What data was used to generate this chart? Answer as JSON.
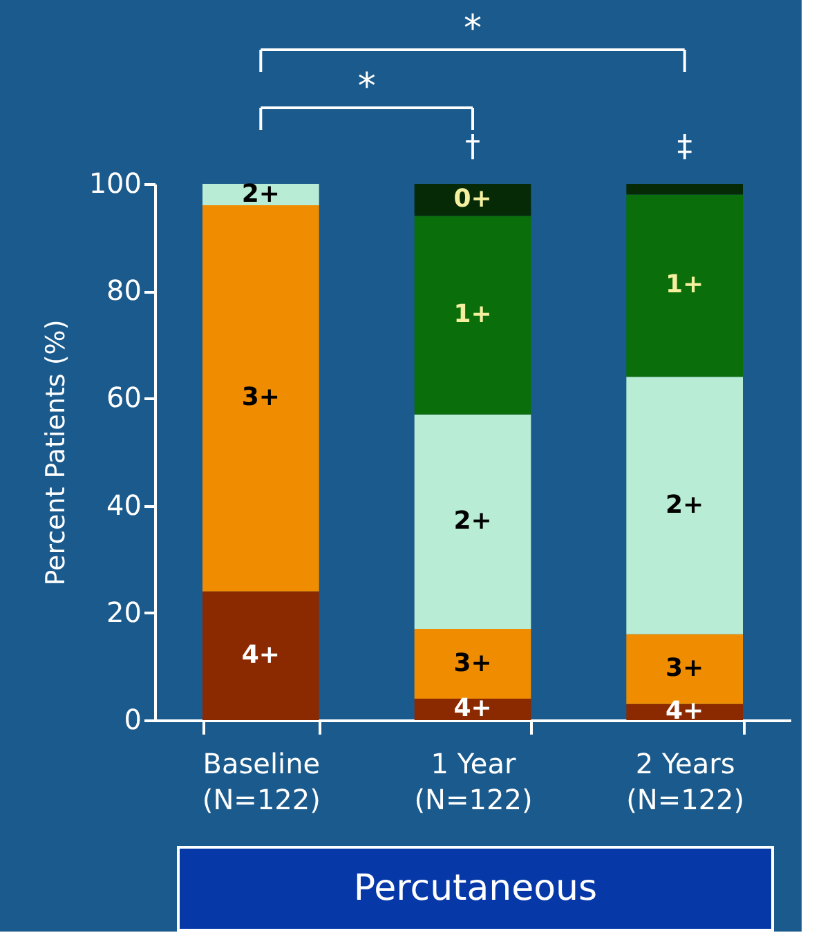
{
  "chart_data": {
    "type": "bar",
    "stacked": true,
    "ylabel": "Percent Patients (%)",
    "categories": [
      "Baseline\n(N=122)",
      "1 Year\n(N=122)",
      "2 Years\n(N=122)"
    ],
    "series": [
      {
        "name": "4+",
        "color": "#8b2a00",
        "values": [
          24,
          4,
          3
        ]
      },
      {
        "name": "3+",
        "color": "#f08c00",
        "values": [
          72,
          13,
          13
        ]
      },
      {
        "name": "2+",
        "color": "#b8ecd4",
        "values": [
          4,
          40,
          48
        ]
      },
      {
        "name": "1+",
        "color": "#0a6e0a",
        "values": [
          0,
          37,
          34
        ]
      },
      {
        "name": "0+",
        "color": "#062a06",
        "values": [
          0,
          6,
          2
        ]
      }
    ],
    "ylim": [
      0,
      100
    ],
    "yticks": [
      0,
      20,
      40,
      60,
      80,
      100
    ],
    "grid": false,
    "legend": false,
    "annotations": [
      "*",
      "*",
      "†",
      "‡",
      "Percutaneous"
    ]
  }
}
